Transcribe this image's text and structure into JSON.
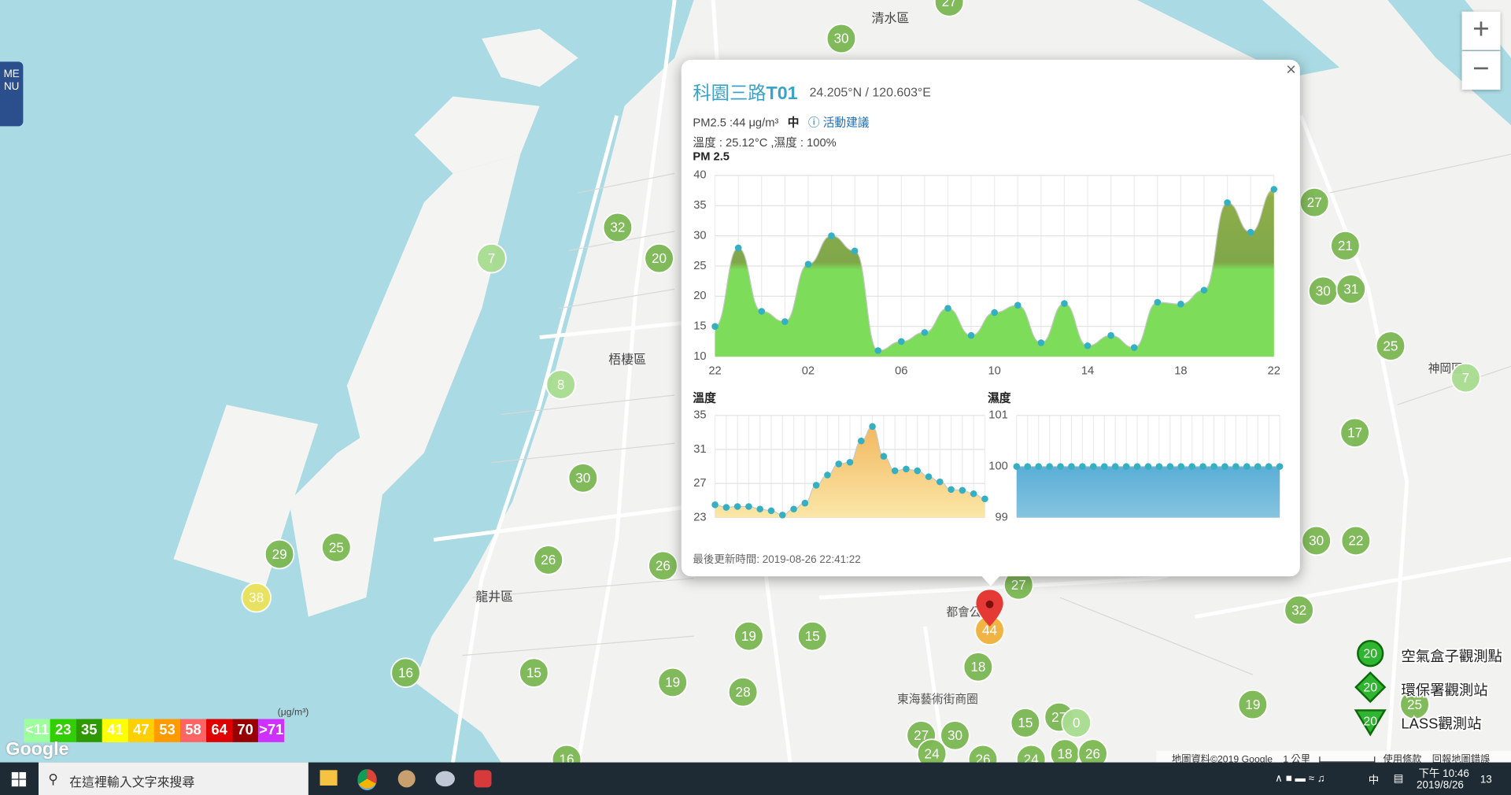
{
  "menu": "MENU",
  "zoom_in": "+",
  "zoom_out": "−",
  "map": {
    "labels": [
      "清水區",
      "梧棲區",
      "龍井區",
      "神岡區",
      "東海藝術街商圈",
      "都會公"
    ],
    "markers": [
      30,
      27,
      32,
      20,
      7,
      8,
      30,
      26,
      26,
      29,
      25,
      38,
      16,
      15,
      19,
      19,
      15,
      28,
      18,
      27,
      30,
      24,
      15,
      27,
      0,
      18,
      26,
      27,
      27,
      21,
      30,
      31,
      25,
      7,
      17,
      30,
      22,
      32,
      19,
      25,
      16,
      26,
      24,
      44
    ]
  },
  "popup": {
    "close": "×",
    "title": "科園三路",
    "title_id": "T01",
    "coords": "24.205°N / 120.603°E",
    "pm25_text": "PM2.5 :44 μg/m³",
    "level": "中",
    "advice": "活動建議",
    "weather": "溫度 : 25.12°C ,濕度 : 100%",
    "pm25_chart": {
      "title": "PM 2.5",
      "x_labels": [
        "22",
        "02",
        "06",
        "10",
        "14",
        "18",
        "22"
      ],
      "ylim": [
        10,
        40
      ],
      "yticks": [
        10,
        15,
        20,
        25,
        30,
        35,
        40
      ],
      "values": [
        15,
        28,
        17.5,
        15.8,
        25.3,
        30,
        27.5,
        11,
        12.5,
        14,
        18,
        13.5,
        17.3,
        18.5,
        12.3,
        18.8,
        11.8,
        13.5,
        11.5,
        19,
        18.7,
        21,
        35.5,
        30.6,
        37.7
      ]
    },
    "temp_chart": {
      "title": "溫度",
      "ylim": [
        23,
        35
      ],
      "yticks": [
        23,
        27,
        31,
        35
      ],
      "values": [
        24.5,
        24.2,
        24.3,
        24.3,
        24,
        23.8,
        23.3,
        24,
        24.7,
        26.8,
        28,
        29.3,
        29.5,
        32,
        33.7,
        30.2,
        28.5,
        28.7,
        28.5,
        27.8,
        27.2,
        26.3,
        26.2,
        25.8,
        25.2
      ]
    },
    "humidity_chart": {
      "title": "濕度",
      "ylim": [
        99,
        101
      ],
      "yticks": [
        99,
        100,
        101
      ],
      "values": [
        100,
        100,
        100,
        100,
        100,
        100,
        100,
        100,
        100,
        100,
        100,
        100,
        100,
        100,
        100,
        100,
        100,
        100,
        100,
        100,
        100,
        100,
        100,
        100,
        100
      ]
    },
    "updated": "最後更新時間: 2019-08-26 22:41:22"
  },
  "scale_legend": {
    "unit": "(μg/m³)",
    "levels": [
      {
        "label": "<11",
        "color": "#9cff9c"
      },
      {
        "label": 23,
        "color": "#31cf00"
      },
      {
        "label": 35,
        "color": "#2e9a00"
      },
      {
        "label": 41,
        "color": "#ffff00"
      },
      {
        "label": 47,
        "color": "#ffcf00"
      },
      {
        "label": 53,
        "color": "#ff9a00"
      },
      {
        "label": 58,
        "color": "#ff6464"
      },
      {
        "label": 64,
        "color": "#e00000"
      },
      {
        "label": 70,
        "color": "#990000"
      },
      {
        "label": ">71",
        "color": "#ce30ff"
      }
    ]
  },
  "station_legend": [
    {
      "icon": 20,
      "label": "空氣盒子觀測點"
    },
    {
      "icon": 20,
      "label": "環保署觀測站"
    },
    {
      "icon": 20,
      "label": "LASS觀測站"
    }
  ],
  "attribution": {
    "google": "Google",
    "map_data": "地圖資料©2019 Google",
    "scale": "1 公里",
    "terms": "使用條款",
    "report": "回報地圖錯誤"
  },
  "taskbar": {
    "search": "在這裡輸入文字來搜尋",
    "ime": "中",
    "time": "下午 10:46",
    "date": "2019/8/26",
    "notifications": 13
  }
}
